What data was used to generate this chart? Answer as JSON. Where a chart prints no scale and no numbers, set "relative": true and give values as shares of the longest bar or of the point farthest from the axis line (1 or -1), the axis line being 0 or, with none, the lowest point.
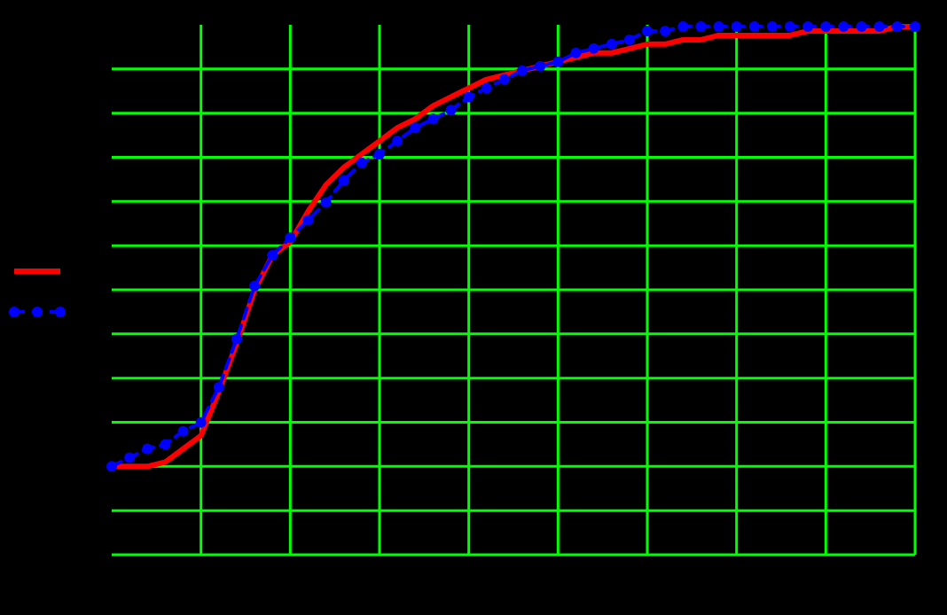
{
  "chart_data": {
    "type": "line",
    "relative": true,
    "grid": true,
    "categories": [
      null,
      null,
      null,
      null,
      null,
      null,
      null,
      null,
      null,
      null,
      null,
      null,
      null,
      null,
      null,
      null,
      null,
      null,
      null,
      null,
      null,
      null,
      null,
      null,
      null,
      null,
      null,
      null,
      null,
      null,
      null,
      null,
      null,
      null,
      null,
      null,
      null,
      null,
      null,
      null,
      null,
      null,
      null,
      null,
      null,
      null
    ],
    "series": [
      {
        "color": "#ff0000",
        "line_style": "solid",
        "marker": "none",
        "values": [
          0,
          0,
          0,
          0.01,
          0.04,
          0.07,
          0.17,
          0.28,
          0.4,
          0.48,
          0.51,
          0.58,
          0.64,
          0.68,
          0.71,
          0.74,
          0.77,
          0.79,
          0.82,
          0.84,
          0.86,
          0.88,
          0.89,
          0.9,
          0.91,
          0.92,
          0.93,
          0.94,
          0.94,
          0.95,
          0.96,
          0.96,
          0.97,
          0.97,
          0.98,
          0.98,
          0.98,
          0.98,
          0.98,
          0.99,
          0.99,
          0.99,
          0.99,
          0.99,
          1,
          1
        ]
      },
      {
        "color": "#0000ff",
        "line_style": "dashed",
        "marker": "circle",
        "values": [
          0,
          0.02,
          0.04,
          0.05,
          0.08,
          0.1,
          0.18,
          0.29,
          0.41,
          0.48,
          0.52,
          0.56,
          0.6,
          0.65,
          0.69,
          0.71,
          0.74,
          0.77,
          0.79,
          0.81,
          0.84,
          0.86,
          0.88,
          0.9,
          0.91,
          0.92,
          0.94,
          0.95,
          0.96,
          0.97,
          0.99,
          0.99,
          1,
          1,
          1,
          1,
          1,
          1,
          1,
          1,
          1,
          1,
          1,
          1,
          1,
          1
        ]
      }
    ]
  }
}
